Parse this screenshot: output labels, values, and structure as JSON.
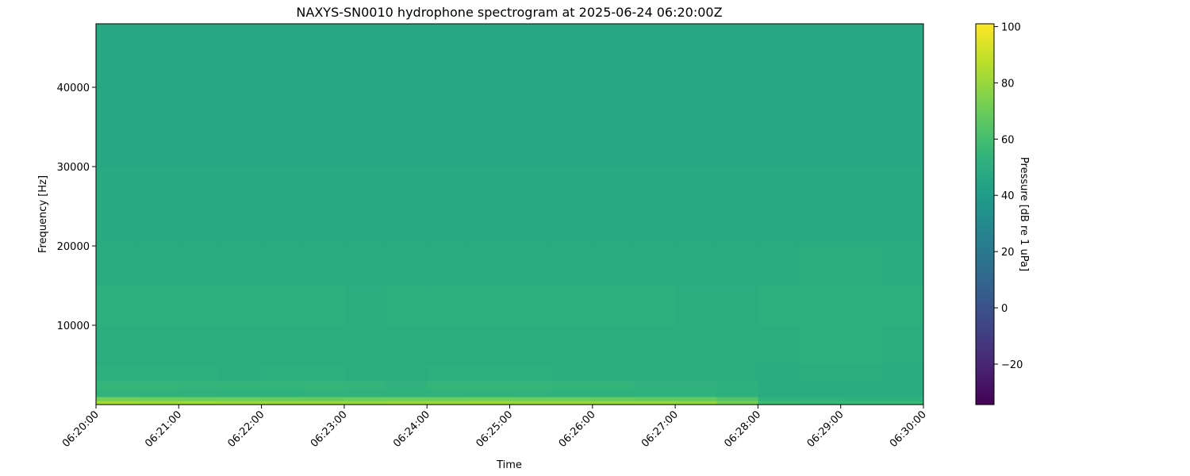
{
  "chart_data": {
    "type": "heatmap",
    "title": "NAXYS-SN0010 hydrophone spectrogram at 2025-06-24 06:20:00Z",
    "xlabel": "Time",
    "ylabel": "Frequency [Hz]",
    "colorbar_label": "Pressure [dB re 1 uPa]",
    "colormap": "viridis",
    "clim": [
      -34.4,
      101
    ],
    "xlim": [
      "06:20:00",
      "06:30:00"
    ],
    "ylim": [
      0,
      48000
    ],
    "x_ticks": [
      "06:20:00",
      "06:21:00",
      "06:22:00",
      "06:23:00",
      "06:24:00",
      "06:25:00",
      "06:26:00",
      "06:27:00",
      "06:28:00",
      "06:29:00",
      "06:30:00"
    ],
    "y_ticks": [
      10000,
      20000,
      30000,
      40000
    ],
    "colorbar_ticks": [
      -20,
      0,
      20,
      40,
      60,
      80,
      100
    ],
    "time_bin_starts": [
      "06:20:00",
      "06:20:30",
      "06:21:00",
      "06:21:30",
      "06:22:00",
      "06:22:30",
      "06:23:00",
      "06:23:30",
      "06:24:00",
      "06:24:30",
      "06:25:00",
      "06:25:30",
      "06:26:00",
      "06:26:30",
      "06:27:00",
      "06:27:30",
      "06:28:00",
      "06:28:30",
      "06:29:00",
      "06:29:30"
    ],
    "freq_bin_edges": [
      0,
      500,
      1000,
      2000,
      3000,
      5000,
      10000,
      15000,
      20000,
      30000,
      40000,
      48000
    ],
    "values_db": [
      [
        82,
        81,
        81,
        80,
        80,
        80,
        79,
        80,
        80,
        81,
        80,
        80,
        79,
        79,
        78,
        72,
        58,
        57,
        57,
        57
      ],
      [
        72,
        71,
        70,
        70,
        69,
        69,
        70,
        70,
        70,
        71,
        70,
        70,
        69,
        68,
        68,
        64,
        53,
        53,
        52,
        52
      ],
      [
        53,
        53,
        53,
        52,
        52,
        53,
        53,
        52,
        53,
        53,
        53,
        52,
        52,
        52,
        52,
        51,
        49,
        49,
        49,
        49
      ],
      [
        55,
        55,
        54,
        54,
        54,
        55,
        54,
        53,
        55,
        55,
        55,
        54,
        54,
        53,
        53,
        52,
        49,
        49,
        49,
        49
      ],
      [
        51,
        51,
        51,
        50,
        51,
        51,
        50,
        50,
        51,
        51,
        51,
        50,
        50,
        50,
        50,
        50,
        49,
        50,
        50,
        49
      ],
      [
        50,
        50,
        50,
        50,
        50,
        50,
        50,
        50,
        50,
        50,
        50,
        50,
        50,
        50,
        50,
        50,
        50,
        51,
        51,
        50
      ],
      [
        51,
        51,
        51,
        51,
        51,
        51,
        50,
        51,
        51,
        51,
        51,
        51,
        51,
        51,
        50,
        50,
        51,
        52,
        52,
        51
      ],
      [
        49,
        49,
        49,
        49,
        49,
        49,
        49,
        49,
        49,
        49,
        49,
        49,
        49,
        49,
        49,
        49,
        49,
        50,
        50,
        49
      ],
      [
        48,
        48,
        48,
        48,
        48,
        48,
        48,
        48,
        48,
        48,
        48,
        48,
        48,
        48,
        48,
        48,
        48,
        48,
        48,
        48
      ],
      [
        47,
        47,
        47,
        47,
        47,
        47,
        47,
        47,
        47,
        47,
        47,
        47,
        47,
        47,
        47,
        47,
        47,
        47,
        47,
        47
      ],
      [
        47,
        47,
        47,
        47,
        47,
        47,
        47,
        47,
        47,
        47,
        47,
        47,
        47,
        47,
        47,
        47,
        47,
        47,
        47,
        47
      ]
    ]
  }
}
